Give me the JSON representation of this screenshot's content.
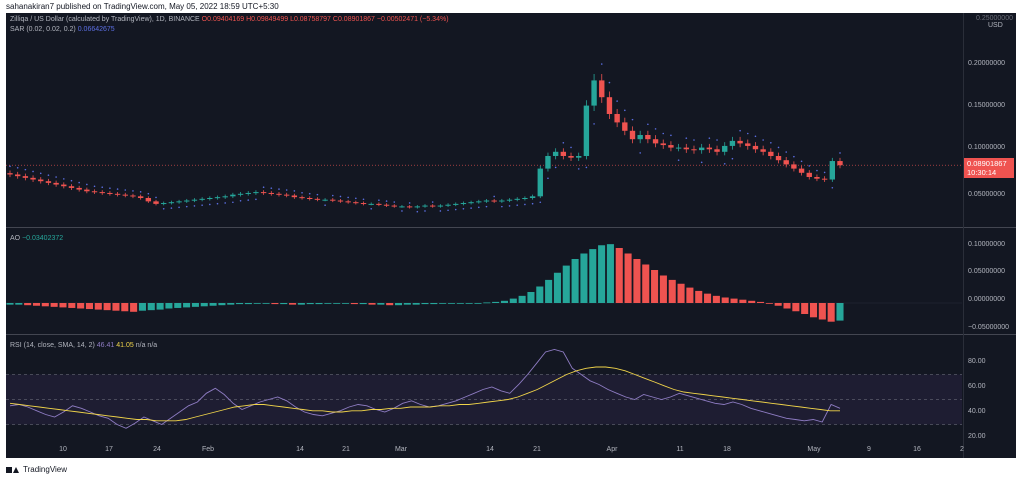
{
  "header": {
    "publisher_line": "sahanakiran7 published on TradingView.com, May 05, 2022 18:59 UTC+5:30"
  },
  "legend_main": {
    "symbol": "Zilliqa / US Dollar (calculated by TradingView), 1D, BINANCE",
    "open": "O0.09404169",
    "high": "H0.09849499",
    "low": "L0.08758797",
    "close": "C0.08901867",
    "change": "−0.00502471 (−5.34%)",
    "sar_label": "SAR (0.02, 0.02, 0.2)",
    "sar_value": "0.06642675"
  },
  "legend_ao": {
    "label": "AO",
    "value": "−0.03402372"
  },
  "legend_rsi": {
    "label": "RSI (14, close, SMA, 14, 2)",
    "value1": "46.41",
    "value2": "41.05",
    "na1": "n/a",
    "na2": "n/a"
  },
  "price_axis": {
    "currency": "USD",
    "top_partial": "0.25000000",
    "labels": [
      "0.20000000",
      "0.15000000",
      "0.10000000",
      "0.05000000"
    ],
    "last_price": "0.08901867",
    "countdown": "10:30:14"
  },
  "ao_axis": {
    "labels": [
      "0.10000000",
      "0.05000000",
      "0.00000000",
      "−0.05000000"
    ]
  },
  "rsi_axis": {
    "labels": [
      "80.00",
      "60.00",
      "40.00",
      "20.00"
    ]
  },
  "time_axis": {
    "labels": [
      "10",
      "17",
      "24",
      "Feb",
      "14",
      "21",
      "Mar",
      "14",
      "21",
      "Apr",
      "11",
      "18",
      "May",
      "9",
      "16",
      "2"
    ]
  },
  "footer": {
    "brand": "TradingView"
  },
  "colors": {
    "up": "#26a69a",
    "down": "#ef5350",
    "sar": "#5b6ee1",
    "rsi": "#8e7cc3",
    "rsi_ma": "#f0d44a",
    "background": "#131722"
  },
  "chart_data": {
    "type": "candlestick",
    "interval": "1D",
    "price_ylim": [
      0.0,
      0.25
    ],
    "ao_ylim": [
      -0.05,
      0.1
    ],
    "rsi_ylim": [
      20,
      90
    ],
    "rsi_bands": [
      30,
      50,
      70
    ],
    "approximate_close_series": [
      0.078,
      0.076,
      0.074,
      0.072,
      0.07,
      0.068,
      0.066,
      0.064,
      0.062,
      0.06,
      0.058,
      0.057,
      0.056,
      0.055,
      0.054,
      0.053,
      0.052,
      0.05,
      0.046,
      0.043,
      0.044,
      0.045,
      0.046,
      0.047,
      0.048,
      0.049,
      0.05,
      0.051,
      0.052,
      0.054,
      0.055,
      0.056,
      0.057,
      0.056,
      0.055,
      0.054,
      0.053,
      0.051,
      0.05,
      0.049,
      0.048,
      0.048,
      0.047,
      0.046,
      0.045,
      0.044,
      0.043,
      0.043,
      0.042,
      0.041,
      0.04,
      0.04,
      0.039,
      0.04,
      0.041,
      0.04,
      0.041,
      0.042,
      0.043,
      0.044,
      0.045,
      0.046,
      0.047,
      0.046,
      0.047,
      0.048,
      0.049,
      0.05,
      0.052,
      0.085,
      0.1,
      0.105,
      0.1,
      0.098,
      0.1,
      0.16,
      0.19,
      0.17,
      0.15,
      0.14,
      0.13,
      0.12,
      0.125,
      0.12,
      0.115,
      0.113,
      0.11,
      0.11,
      0.108,
      0.107,
      0.11,
      0.108,
      0.105,
      0.112,
      0.118,
      0.115,
      0.112,
      0.108,
      0.105,
      0.1,
      0.095,
      0.09,
      0.085,
      0.08,
      0.075,
      0.073,
      0.072,
      0.094,
      0.089
    ],
    "approximate_ao_series": [
      -0.003,
      -0.003,
      -0.004,
      -0.005,
      -0.006,
      -0.007,
      -0.008,
      -0.009,
      -0.01,
      -0.011,
      -0.012,
      -0.013,
      -0.014,
      -0.015,
      -0.016,
      -0.014,
      -0.013,
      -0.012,
      -0.01,
      -0.009,
      -0.008,
      -0.007,
      -0.006,
      -0.005,
      -0.004,
      -0.003,
      -0.002,
      -0.002,
      -0.001,
      -0.001,
      -0.002,
      -0.002,
      -0.003,
      -0.003,
      -0.002,
      -0.002,
      -0.001,
      -0.001,
      -0.001,
      -0.002,
      -0.002,
      -0.003,
      -0.003,
      -0.004,
      -0.004,
      -0.003,
      -0.003,
      -0.002,
      -0.002,
      -0.001,
      -0.001,
      -0.001,
      0.0,
      0.0,
      0.001,
      0.002,
      0.004,
      0.008,
      0.013,
      0.02,
      0.03,
      0.042,
      0.055,
      0.068,
      0.08,
      0.09,
      0.098,
      0.105,
      0.107,
      0.1,
      0.09,
      0.08,
      0.07,
      0.06,
      0.05,
      0.042,
      0.035,
      0.028,
      0.022,
      0.017,
      0.013,
      0.01,
      0.008,
      0.006,
      0.004,
      0.002,
      -0.001,
      -0.005,
      -0.01,
      -0.015,
      -0.02,
      -0.026,
      -0.03,
      -0.034,
      -0.032
    ],
    "approximate_rsi_series": [
      45,
      46,
      44,
      41,
      38,
      36,
      40,
      45,
      43,
      40,
      37,
      35,
      30,
      27,
      31,
      36,
      33,
      30,
      35,
      40,
      45,
      48,
      55,
      59,
      54,
      47,
      42,
      45,
      48,
      50,
      52,
      49,
      44,
      40,
      38,
      37,
      39,
      41,
      44,
      46,
      45,
      42,
      40,
      43,
      47,
      49,
      46,
      44,
      45,
      47,
      49,
      52,
      55,
      58,
      60,
      57,
      55,
      62,
      70,
      79,
      88,
      90,
      88,
      75,
      70,
      65,
      62,
      58,
      55,
      52,
      50,
      54,
      52,
      50,
      52,
      55,
      53,
      51,
      49,
      47,
      46,
      48,
      46,
      43,
      41,
      39,
      37,
      35,
      34,
      33,
      34,
      32,
      46,
      43
    ],
    "approximate_rsi_ma_series": [
      47,
      46,
      45,
      44,
      43,
      42,
      41,
      40,
      39,
      38,
      37,
      36,
      35,
      34,
      34,
      33,
      33,
      33,
      34,
      36,
      38,
      40,
      42,
      44,
      45,
      46,
      46,
      45,
      44,
      43,
      42,
      41,
      41,
      40,
      40,
      41,
      41,
      42,
      42,
      43,
      43,
      44,
      44,
      44,
      45,
      45,
      46,
      46,
      47,
      48,
      49,
      50,
      52,
      55,
      58,
      62,
      66,
      70,
      73,
      75,
      76,
      76,
      75,
      73,
      70,
      67,
      64,
      61,
      58,
      56,
      55,
      54,
      53,
      52,
      51,
      50,
      49,
      48,
      47,
      46,
      45,
      44,
      43,
      42,
      41,
      41
    ]
  }
}
